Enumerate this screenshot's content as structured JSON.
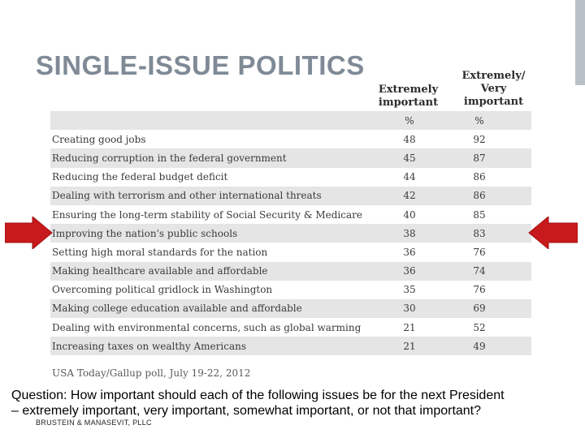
{
  "slide": {
    "title": "SINGLE-ISSUE POLITICS",
    "col1_header_line1": "Extremely",
    "col1_header_line2": "important",
    "col2_header_line1": "Extremely/",
    "col2_header_line2": "Very",
    "col2_header_line3": "important",
    "unit1": "%",
    "unit2": "%",
    "rows": [
      {
        "label": "Creating good jobs",
        "extremely": "48",
        "extremely_very": "92"
      },
      {
        "label": "Reducing corruption in the federal government",
        "extremely": "45",
        "extremely_very": "87"
      },
      {
        "label": "Reducing the federal budget deficit",
        "extremely": "44",
        "extremely_very": "86"
      },
      {
        "label": "Dealing with terrorism and other international threats",
        "extremely": "42",
        "extremely_very": "86"
      },
      {
        "label": "Ensuring the long-term stability of Social Security & Medicare",
        "extremely": "40",
        "extremely_very": "85"
      },
      {
        "label": "Improving the nation's public schools",
        "extremely": "38",
        "extremely_very": "83"
      },
      {
        "label": "Setting high moral standards for the nation",
        "extremely": "36",
        "extremely_very": "76"
      },
      {
        "label": "Making healthcare available and affordable",
        "extremely": "36",
        "extremely_very": "74"
      },
      {
        "label": "Overcoming political gridlock in Washington",
        "extremely": "35",
        "extremely_very": "76"
      },
      {
        "label": "Making college education available and affordable",
        "extremely": "30",
        "extremely_very": "69"
      },
      {
        "label": "Dealing with environmental concerns, such as global warming",
        "extremely": "21",
        "extremely_very": "52"
      },
      {
        "label": "Increasing taxes on wealthy Americans",
        "extremely": "21",
        "extremely_very": "49"
      }
    ],
    "source": "USA Today/Gallup poll, July 19-22, 2012",
    "question_line1": "Question: How important should each of the following issues be for the next President",
    "question_line2": "– extremely important, very important, somewhat important, or not that important?",
    "footer": "BRUSTEIN & MANASEVIT, PLLC",
    "arrow_color": "#c8191c"
  }
}
